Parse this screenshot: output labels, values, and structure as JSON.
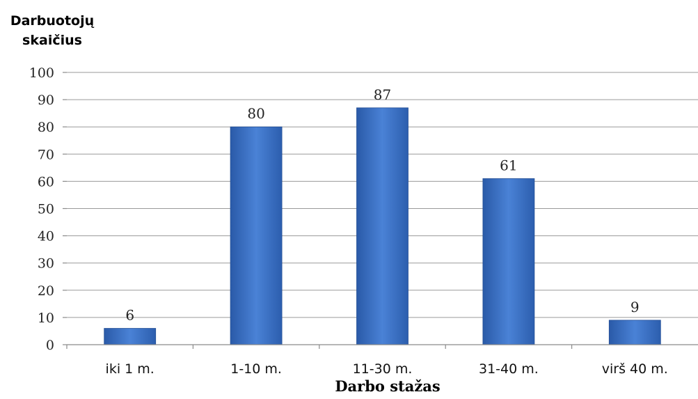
{
  "chart_data": {
    "type": "bar",
    "ylabel_lines": [
      "Darbuotojų",
      "skaičius"
    ],
    "xlabel": "Darbo stažas",
    "categories": [
      "iki 1 m.",
      "1-10 m.",
      "11-30 m.",
      "31-40 m.",
      "virš 40 m."
    ],
    "values": [
      6,
      80,
      87,
      61,
      9
    ],
    "ylim": [
      0,
      100
    ],
    "yticks": [
      0,
      10,
      20,
      30,
      40,
      50,
      60,
      70,
      80,
      90,
      100
    ],
    "grid": true,
    "bar_color": "#3a6fc4"
  }
}
